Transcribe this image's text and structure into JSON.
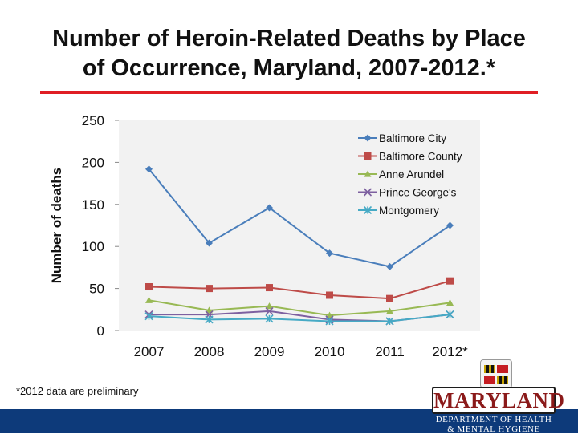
{
  "slide": {
    "title_line1": "Number of Heroin-Related Deaths by Place",
    "title_line2": "of Occurrence, Maryland, 2007-2012.*",
    "footnote": "*2012 data are preliminary",
    "accent_color": "#e01e24",
    "bottom_bar_color": "#0d3a7a"
  },
  "logo": {
    "wordmark": "MARYLAND",
    "dept_line1": "DEPARTMENT OF HEALTH",
    "dept_line2": "& MENTAL HYGIENE",
    "seal_icon": "maryland-flag-seal-icon"
  },
  "chart_data": {
    "type": "line",
    "title": "",
    "xlabel": "",
    "ylabel": "Number of deaths",
    "categories": [
      "2007",
      "2008",
      "2009",
      "2010",
      "2011",
      "2012*"
    ],
    "ylim": [
      0,
      250
    ],
    "yticks": [
      0,
      50,
      100,
      150,
      200,
      250
    ],
    "grid": false,
    "legend_position": "top-right",
    "series": [
      {
        "name": "Baltimore City",
        "color": "#4a7ebb",
        "marker": "diamond",
        "values": [
          192,
          104,
          146,
          92,
          76,
          125
        ]
      },
      {
        "name": "Baltimore County",
        "color": "#be4b48",
        "marker": "square",
        "values": [
          52,
          50,
          51,
          42,
          38,
          59
        ]
      },
      {
        "name": "Anne Arundel",
        "color": "#98b954",
        "marker": "triangle",
        "values": [
          36,
          24,
          29,
          18,
          23,
          33
        ]
      },
      {
        "name": "Prince George's",
        "color": "#7d60a0",
        "marker": "x",
        "values": [
          19,
          19,
          23,
          13,
          11,
          19
        ]
      },
      {
        "name": "Montgomery",
        "color": "#46aac5",
        "marker": "star",
        "values": [
          17,
          13,
          14,
          11,
          11,
          19
        ]
      }
    ]
  }
}
